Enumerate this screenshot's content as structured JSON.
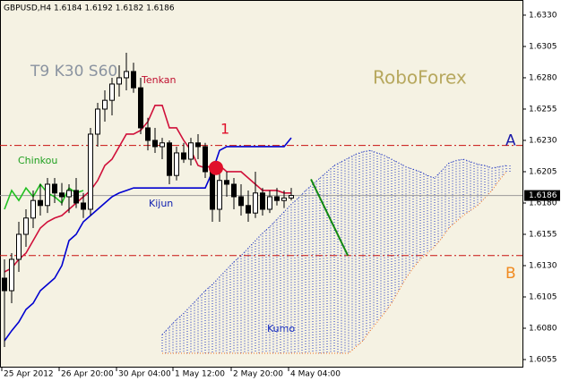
{
  "chart_data": {
    "type": "candlestick",
    "title": "GBPUSD,H4  1.6184 1.6192 1.6182 1.6186",
    "params": "T9 K30 S60",
    "brand": "RoboForex",
    "xlim": [
      -0.625,
      72.25
    ],
    "ylim": [
      1.60493,
      1.63421
    ],
    "yticks": [
      {
        "value": 1.633,
        "label": "1.6330"
      },
      {
        "value": 1.6305,
        "label": "1.6305"
      },
      {
        "value": 1.628,
        "label": "1.6280"
      },
      {
        "value": 1.6255,
        "label": "1.6255"
      },
      {
        "value": 1.623,
        "label": "1.6230"
      },
      {
        "value": 1.6205,
        "label": "1.6205"
      },
      {
        "value": 1.618,
        "label": "1.6180"
      },
      {
        "value": 1.6155,
        "label": "1.6155"
      },
      {
        "value": 1.613,
        "label": "1.6130"
      },
      {
        "value": 1.6105,
        "label": "1.6105"
      },
      {
        "value": 1.608,
        "label": "1.6080"
      },
      {
        "value": 1.6055,
        "label": "1.6055"
      }
    ],
    "xticks": [
      {
        "value": -0.375,
        "label": "25 Apr 2012"
      },
      {
        "value": 7.625,
        "label": "26 Apr 20:00"
      },
      {
        "value": 15.625,
        "label": "30 Apr 04:00"
      },
      {
        "value": 23.5,
        "label": "1 May 12:00"
      },
      {
        "value": 31.625,
        "label": "2 May 20:00"
      },
      {
        "value": 39.625,
        "label": "4 May 04:00"
      }
    ],
    "candles": {
      "x": [
        0,
        1,
        2,
        3,
        4,
        5,
        6,
        7,
        8,
        9,
        10,
        11,
        12,
        13,
        14,
        15,
        16,
        17,
        18,
        19,
        20,
        21,
        22,
        23,
        24,
        25,
        26,
        27,
        28,
        29,
        30,
        31,
        32,
        33,
        34,
        35,
        36,
        37,
        38,
        39,
        40
      ],
      "open": [
        1.612,
        1.611,
        1.6135,
        1.6155,
        1.6168,
        1.6182,
        1.6178,
        1.6195,
        1.6188,
        1.6185,
        1.619,
        1.618,
        1.6175,
        1.6235,
        1.6255,
        1.6262,
        1.6275,
        1.628,
        1.6285,
        1.6272,
        1.624,
        1.623,
        1.6225,
        1.6228,
        1.6202,
        1.622,
        1.6215,
        1.6228,
        1.6225,
        1.6205,
        1.6175,
        1.6198,
        1.6195,
        1.6185,
        1.6178,
        1.6172,
        1.6188,
        1.6175,
        1.6185,
        1.6182,
        1.6184
      ],
      "high": [
        1.6135,
        1.614,
        1.6165,
        1.6175,
        1.619,
        1.6195,
        1.62,
        1.62,
        1.6196,
        1.6195,
        1.62,
        1.6188,
        1.624,
        1.626,
        1.627,
        1.628,
        1.629,
        1.63,
        1.6292,
        1.628,
        1.6248,
        1.624,
        1.6232,
        1.623,
        1.6225,
        1.6228,
        1.6232,
        1.6235,
        1.6228,
        1.621,
        1.6205,
        1.6205,
        1.62,
        1.6195,
        1.619,
        1.6205,
        1.6192,
        1.619,
        1.6192,
        1.619,
        1.6192
      ],
      "low": [
        1.6065,
        1.61,
        1.6125,
        1.6145,
        1.616,
        1.617,
        1.6172,
        1.618,
        1.6178,
        1.6172,
        1.6176,
        1.6168,
        1.617,
        1.6225,
        1.6245,
        1.625,
        1.6265,
        1.627,
        1.6268,
        1.6235,
        1.6222,
        1.622,
        1.6215,
        1.6195,
        1.6198,
        1.6212,
        1.621,
        1.6215,
        1.62,
        1.6165,
        1.6165,
        1.6185,
        1.6175,
        1.617,
        1.6165,
        1.6168,
        1.617,
        1.6172,
        1.6178,
        1.6176,
        1.6182
      ],
      "close": [
        1.611,
        1.6135,
        1.6155,
        1.6168,
        1.6182,
        1.6178,
        1.6195,
        1.6188,
        1.6185,
        1.619,
        1.618,
        1.6175,
        1.6235,
        1.6255,
        1.6262,
        1.6275,
        1.628,
        1.6285,
        1.6272,
        1.624,
        1.623,
        1.6225,
        1.6228,
        1.6202,
        1.622,
        1.6215,
        1.6228,
        1.6225,
        1.6205,
        1.6175,
        1.6198,
        1.6195,
        1.6185,
        1.6178,
        1.6172,
        1.6188,
        1.6175,
        1.6185,
        1.6182,
        1.6184,
        1.6186
      ]
    },
    "lines": [
      {
        "name": "Tenkan",
        "color": "#d0103a",
        "x": [
          0,
          1,
          2,
          3,
          4,
          5,
          6,
          7,
          8,
          9,
          10,
          11,
          12,
          13,
          14,
          15,
          16,
          17,
          18,
          19,
          20,
          21,
          22,
          23,
          24,
          25,
          26,
          27,
          28,
          29,
          30,
          31,
          32,
          33,
          34,
          35,
          36,
          37,
          38,
          39,
          40
        ],
        "values": [
          1.6125,
          1.6128,
          1.6135,
          1.614,
          1.615,
          1.616,
          1.6165,
          1.6168,
          1.617,
          1.6175,
          1.618,
          1.6185,
          1.619,
          1.6198,
          1.621,
          1.6215,
          1.6225,
          1.6235,
          1.6235,
          1.6238,
          1.6245,
          1.6258,
          1.6258,
          1.624,
          1.624,
          1.623,
          1.6222,
          1.621,
          1.6208,
          1.621,
          1.621,
          1.6205,
          1.6205,
          1.6205,
          1.62,
          1.6195,
          1.619,
          1.619,
          1.619,
          1.6188,
          1.6188
        ]
      },
      {
        "name": "Kijun",
        "color": "#0000d0",
        "x": [
          0,
          1,
          2,
          3,
          4,
          5,
          6,
          7,
          8,
          9,
          10,
          11,
          12,
          13,
          14,
          15,
          16,
          17,
          18,
          19,
          20,
          21,
          22,
          23,
          24,
          25,
          26,
          27,
          28,
          29,
          30,
          31,
          32,
          33,
          34,
          35,
          36,
          37,
          38,
          39,
          40
        ],
        "values": [
          1.607,
          1.6078,
          1.6085,
          1.6095,
          1.61,
          1.611,
          1.6115,
          1.612,
          1.613,
          1.615,
          1.6155,
          1.6165,
          1.617,
          1.6175,
          1.618,
          1.6185,
          1.6188,
          1.619,
          1.6192,
          1.6192,
          1.6192,
          1.6192,
          1.6192,
          1.6192,
          1.6192,
          1.6192,
          1.6192,
          1.6192,
          1.6192,
          1.6205,
          1.6222,
          1.6225,
          1.6225,
          1.6225,
          1.6225,
          1.6225,
          1.6225,
          1.6225,
          1.6225,
          1.6225,
          1.6232
        ]
      },
      {
        "name": "Chinkou",
        "color": "#22c022",
        "x": [
          0,
          1,
          2,
          3,
          4,
          5,
          6,
          7,
          8,
          9,
          10,
          11
        ],
        "values": [
          1.6175,
          1.619,
          1.6182,
          1.6192,
          1.6185,
          1.6195,
          1.6188,
          1.6185,
          1.618,
          1.6192,
          1.6188,
          1.619
        ]
      }
    ],
    "cloud": {
      "name": "Kumo",
      "color": "#1a30c0",
      "span_b_color": "#f07020",
      "x": [
        22,
        23,
        24,
        25,
        26,
        27,
        28,
        29,
        30,
        31,
        32,
        33,
        34,
        35,
        36,
        37,
        38,
        39,
        40,
        41,
        42,
        43,
        44,
        45,
        46,
        47,
        48,
        49,
        50,
        51,
        52,
        53,
        54,
        55,
        56,
        57,
        58,
        59,
        60,
        61,
        62,
        63,
        64,
        65,
        66,
        67,
        68,
        69,
        70
      ],
      "span_a": [
        1.6075,
        1.6081,
        1.6087,
        1.6092,
        1.6098,
        1.6104,
        1.611,
        1.6115,
        1.6121,
        1.6127,
        1.6133,
        1.6138,
        1.6144,
        1.615,
        1.6156,
        1.6161,
        1.6167,
        1.6173,
        1.6179,
        1.6184,
        1.619,
        1.6195,
        1.62,
        1.6205,
        1.621,
        1.6213,
        1.6216,
        1.6219,
        1.6221,
        1.6222,
        1.622,
        1.6218,
        1.6215,
        1.6212,
        1.6209,
        1.6207,
        1.6205,
        1.6202,
        1.62,
        1.6206,
        1.6212,
        1.6214,
        1.6215,
        1.6213,
        1.6211,
        1.621,
        1.6208,
        1.6209,
        1.621
      ],
      "span_b": [
        1.606,
        1.606,
        1.606,
        1.606,
        1.606,
        1.606,
        1.606,
        1.606,
        1.606,
        1.606,
        1.606,
        1.606,
        1.606,
        1.606,
        1.606,
        1.606,
        1.606,
        1.606,
        1.606,
        1.606,
        1.606,
        1.606,
        1.606,
        1.606,
        1.606,
        1.606,
        1.606,
        1.6065,
        1.607,
        1.6078,
        1.6085,
        1.6092,
        1.61,
        1.611,
        1.612,
        1.6128,
        1.6135,
        1.614,
        1.6145,
        1.6152,
        1.616,
        1.6165,
        1.617,
        1.6174,
        1.6178,
        1.6184,
        1.619,
        1.6198,
        1.6205
      ]
    },
    "levels": [
      {
        "value": 1.6226,
        "label": "A",
        "color": "#1a1aa8"
      },
      {
        "value": 1.6138,
        "label": "B",
        "color": "#f08a20"
      }
    ],
    "level_line_color": "#c81010",
    "trend_line": {
      "color": "#118811",
      "x": [
        42.75,
        47.9
      ],
      "values": [
        1.6199,
        1.6138
      ]
    },
    "signal": {
      "label": "1",
      "color": "#e0102a",
      "x": 29.5,
      "value": 1.6208
    },
    "current_price": {
      "value": 1.6186,
      "label": "1.6186"
    }
  }
}
